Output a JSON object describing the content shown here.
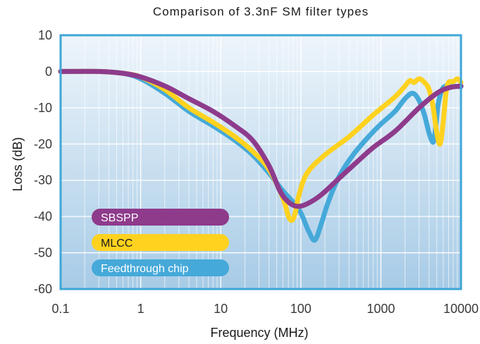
{
  "chart_data": {
    "type": "line",
    "title": "Comparison of 3.3nF SM filter types",
    "xlabel": "Frequency (MHz)",
    "ylabel": "Loss (dB)",
    "x_scale": "log",
    "xlim": [
      0.1,
      10000
    ],
    "ylim": [
      -60,
      10
    ],
    "x_ticks": [
      0.1,
      1,
      10,
      100,
      1000,
      10000
    ],
    "x_tick_labels": [
      "0.1",
      "1",
      "10",
      "100",
      "1000",
      "10000"
    ],
    "y_ticks": [
      10,
      0,
      -10,
      -20,
      -30,
      -40,
      -50,
      -60
    ],
    "y_tick_labels": [
      "10",
      "0",
      "-10",
      "-20",
      "-30",
      "-40",
      "-50",
      "-60"
    ],
    "grid": true,
    "legend_position": "bottom-left",
    "background_gradient": [
      "#a7cbe6",
      "#eef5fb"
    ],
    "frame_color": "#3fa6d6",
    "series": [
      {
        "name": "Feedthrough chip",
        "color": "#45a9d9",
        "points": [
          [
            0.1,
            0
          ],
          [
            0.3,
            0
          ],
          [
            0.6,
            -0.5
          ],
          [
            1,
            -2
          ],
          [
            2,
            -6
          ],
          [
            4,
            -11
          ],
          [
            8,
            -15
          ],
          [
            15,
            -19
          ],
          [
            25,
            -23
          ],
          [
            40,
            -28
          ],
          [
            60,
            -33
          ],
          [
            80,
            -36
          ],
          [
            100,
            -39
          ],
          [
            125,
            -44
          ],
          [
            150,
            -46.5
          ],
          [
            180,
            -42
          ],
          [
            220,
            -36
          ],
          [
            300,
            -29
          ],
          [
            450,
            -23
          ],
          [
            700,
            -18
          ],
          [
            1000,
            -14.5
          ],
          [
            1500,
            -11
          ],
          [
            2000,
            -7.5
          ],
          [
            2500,
            -6
          ],
          [
            3000,
            -8
          ],
          [
            3500,
            -12
          ],
          [
            4000,
            -17
          ],
          [
            4500,
            -19.5
          ],
          [
            4800,
            -16
          ],
          [
            5200,
            -9
          ],
          [
            5800,
            -5
          ],
          [
            6500,
            -4
          ],
          [
            7500,
            -4
          ],
          [
            10000,
            -4.2
          ]
        ]
      },
      {
        "name": "MLCC",
        "color": "#ffd21f",
        "points": [
          [
            0.1,
            0
          ],
          [
            0.3,
            0
          ],
          [
            0.6,
            -0.5
          ],
          [
            1,
            -1.5
          ],
          [
            2,
            -5
          ],
          [
            4,
            -10
          ],
          [
            8,
            -14
          ],
          [
            15,
            -18
          ],
          [
            25,
            -22
          ],
          [
            40,
            -27
          ],
          [
            60,
            -35
          ],
          [
            70,
            -40
          ],
          [
            78,
            -41
          ],
          [
            85,
            -39
          ],
          [
            95,
            -34
          ],
          [
            120,
            -28
          ],
          [
            200,
            -23
          ],
          [
            400,
            -18
          ],
          [
            800,
            -12
          ],
          [
            1500,
            -7
          ],
          [
            2000,
            -4
          ],
          [
            2300,
            -2.5
          ],
          [
            2600,
            -3
          ],
          [
            3000,
            -2
          ],
          [
            3500,
            -3
          ],
          [
            4000,
            -5
          ],
          [
            4500,
            -10
          ],
          [
            5000,
            -17
          ],
          [
            5500,
            -20
          ],
          [
            6000,
            -14
          ],
          [
            6500,
            -6
          ],
          [
            7000,
            -3
          ],
          [
            8000,
            -2.8
          ],
          [
            9000,
            -2
          ],
          [
            10000,
            -3
          ]
        ]
      },
      {
        "name": "SBSPP",
        "color": "#8e3b8c",
        "points": [
          [
            0.1,
            0
          ],
          [
            0.3,
            0
          ],
          [
            0.6,
            -0.5
          ],
          [
            1,
            -1.5
          ],
          [
            2,
            -4
          ],
          [
            4,
            -7.5
          ],
          [
            8,
            -11
          ],
          [
            15,
            -15
          ],
          [
            25,
            -19
          ],
          [
            40,
            -26
          ],
          [
            55,
            -33
          ],
          [
            70,
            -36
          ],
          [
            90,
            -37.2
          ],
          [
            120,
            -36.5
          ],
          [
            180,
            -34
          ],
          [
            300,
            -29.5
          ],
          [
            500,
            -25
          ],
          [
            800,
            -21
          ],
          [
            1500,
            -16.5
          ],
          [
            3000,
            -10
          ],
          [
            5000,
            -6
          ],
          [
            7000,
            -4.5
          ],
          [
            10000,
            -4
          ]
        ]
      }
    ]
  }
}
